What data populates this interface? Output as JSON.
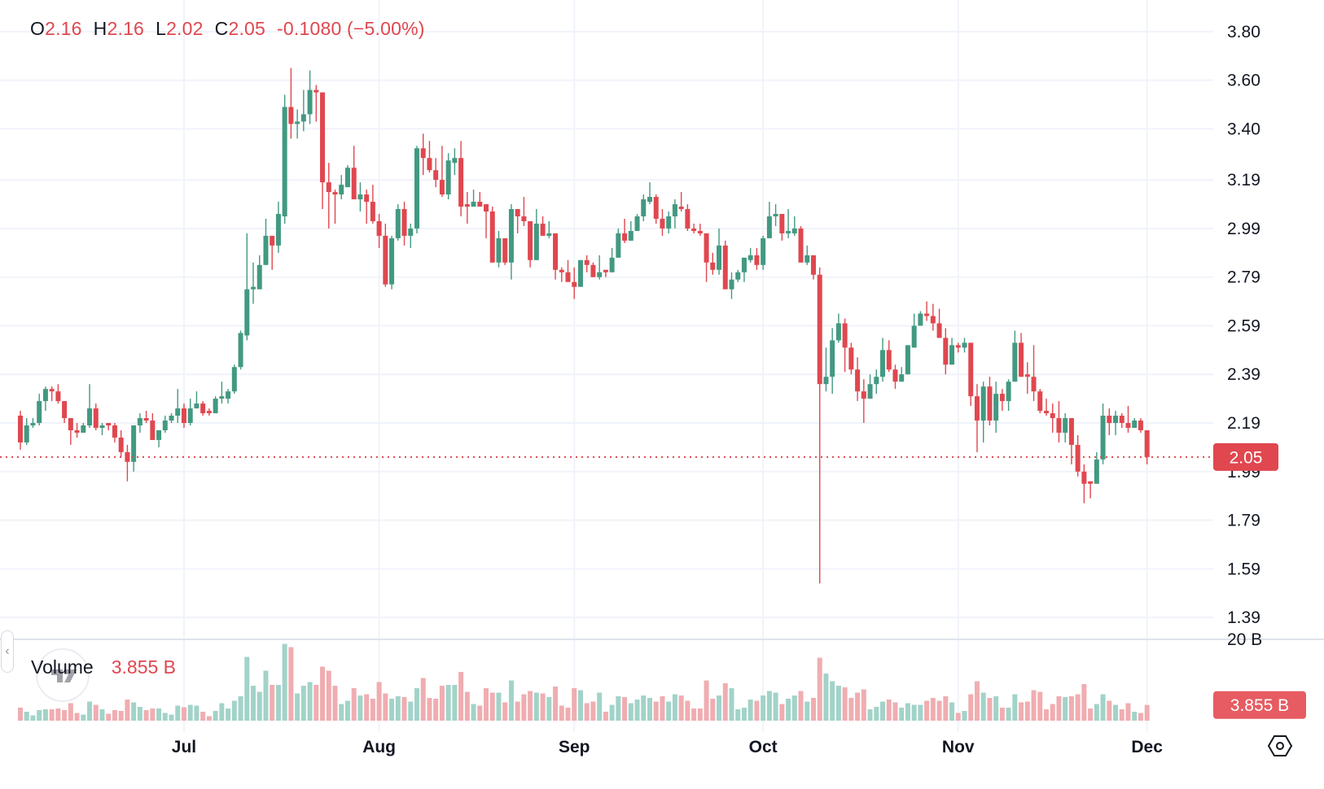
{
  "legend": {
    "o_label": "O",
    "o": "2.16",
    "h_label": "H",
    "h": "2.16",
    "l_label": "L",
    "l": "2.02",
    "c_label": "C",
    "c": "2.05",
    "change": "-0.1080 (−5.00%)"
  },
  "volume_legend": {
    "label": "Volume",
    "value": "3.855 B"
  },
  "price_axis": {
    "ticks": [
      "3.80",
      "3.60",
      "3.40",
      "3.19",
      "2.99",
      "2.79",
      "2.59",
      "2.39",
      "2.19",
      "1.99",
      "1.79",
      "1.59",
      "1.39"
    ],
    "last_price_label": "2.05"
  },
  "volume_axis": {
    "ticks": [
      "20 B"
    ],
    "last_volume_label": "3.855 B"
  },
  "time_axis": {
    "labels": [
      "Jul",
      "Aug",
      "Sep",
      "Oct",
      "Nov",
      "Dec"
    ]
  },
  "colors": {
    "up": "#429981",
    "down": "#e0474f",
    "volume_up": "#a2d3c8",
    "volume_down": "#f0adb1",
    "grid": "#f0f3fa",
    "text": "#131722"
  },
  "icons": {
    "collapse": "chevron-left-icon",
    "logo": "tradingview-logo",
    "settings": "settings-hexagon-icon"
  },
  "chart_data": {
    "type": "candlestick",
    "price_scale": "linear",
    "ylim": [
      1.3,
      3.93
    ],
    "volume_ylim": [
      0,
      21.5
    ],
    "volume_unit": "B",
    "grid": true,
    "last_close": 2.05,
    "columns": [
      "date",
      "open",
      "high",
      "low",
      "close",
      "volume"
    ],
    "candles": [
      [
        "Jun 5",
        2.22,
        2.24,
        2.08,
        2.11,
        3.2
      ],
      [
        "Jun 6",
        2.11,
        2.21,
        2.1,
        2.18,
        2.2
      ],
      [
        "Jun 7",
        2.18,
        2.21,
        2.17,
        2.19,
        1.3
      ],
      [
        "Jun 8",
        2.19,
        2.31,
        2.18,
        2.28,
        2.6
      ],
      [
        "Jun 9",
        2.28,
        2.34,
        2.24,
        2.33,
        2.8
      ],
      [
        "Jun 10",
        2.33,
        2.34,
        2.28,
        2.32,
        2.8
      ],
      [
        "Jun 11",
        2.32,
        2.35,
        2.27,
        2.28,
        3.0
      ],
      [
        "Jun 12",
        2.28,
        2.28,
        2.19,
        2.21,
        2.6
      ],
      [
        "Jun 13",
        2.21,
        2.21,
        2.1,
        2.16,
        4.3
      ],
      [
        "Jun 14",
        2.16,
        2.19,
        2.13,
        2.15,
        1.9
      ],
      [
        "Jun 15",
        2.15,
        2.19,
        2.15,
        2.18,
        1.5
      ],
      [
        "Jun 16",
        2.18,
        2.35,
        2.17,
        2.25,
        4.7
      ],
      [
        "Jun 17",
        2.25,
        2.27,
        2.16,
        2.17,
        3.9
      ],
      [
        "Jun 18",
        2.17,
        2.19,
        2.14,
        2.18,
        2.8
      ],
      [
        "Jun 19",
        2.19,
        2.19,
        2.16,
        2.18,
        1.7
      ],
      [
        "Jun 20",
        2.18,
        2.19,
        2.11,
        2.13,
        2.6
      ],
      [
        "Jun 21",
        2.13,
        2.16,
        2.05,
        2.07,
        2.4
      ],
      [
        "Jun 22",
        2.07,
        2.1,
        1.95,
        2.03,
        5.2
      ],
      [
        "Jun 23",
        2.03,
        2.18,
        1.99,
        2.18,
        4.5
      ],
      [
        "Jun 24",
        2.18,
        2.23,
        2.15,
        2.21,
        3.4
      ],
      [
        "Jun 25",
        2.21,
        2.24,
        2.19,
        2.2,
        2.6
      ],
      [
        "Jun 26",
        2.2,
        2.23,
        2.12,
        2.12,
        3.0
      ],
      [
        "Jun 27",
        2.12,
        2.16,
        2.09,
        2.16,
        3.0
      ],
      [
        "Jun 28",
        2.16,
        2.22,
        2.15,
        2.2,
        1.9
      ],
      [
        "Jun 29",
        2.2,
        2.23,
        2.19,
        2.22,
        1.5
      ],
      [
        "Jun 30",
        2.22,
        2.33,
        2.19,
        2.25,
        3.7
      ],
      [
        "Jul 1",
        2.25,
        2.27,
        2.17,
        2.19,
        3.3
      ],
      [
        "Jul 2",
        2.19,
        2.29,
        2.18,
        2.25,
        3.9
      ],
      [
        "Jul 3",
        2.25,
        2.32,
        2.25,
        2.27,
        3.7
      ],
      [
        "Jul 4",
        2.27,
        2.28,
        2.22,
        2.23,
        2.2
      ],
      [
        "Jul 5",
        2.24,
        2.25,
        2.22,
        2.23,
        1.1
      ],
      [
        "Jul 6",
        2.23,
        2.3,
        2.23,
        2.29,
        2.4
      ],
      [
        "Jul 7",
        2.29,
        2.36,
        2.27,
        2.3,
        4.3
      ],
      [
        "Jul 8",
        2.29,
        2.33,
        2.27,
        2.32,
        3.0
      ],
      [
        "Jul 9",
        2.32,
        2.43,
        2.31,
        2.42,
        4.9
      ],
      [
        "Jul 10",
        2.42,
        2.57,
        2.41,
        2.56,
        6.0
      ],
      [
        "Jul 11",
        2.55,
        2.97,
        2.53,
        2.74,
        15.7
      ],
      [
        "Jul 12",
        2.74,
        2.85,
        2.68,
        2.75,
        8.6
      ],
      [
        "Jul 13",
        2.74,
        2.88,
        2.74,
        2.84,
        7.1
      ],
      [
        "Jul 14",
        2.84,
        3.03,
        2.84,
        2.96,
        12.3
      ],
      [
        "Jul 15",
        2.96,
        2.96,
        2.82,
        2.92,
        8.8
      ],
      [
        "Jul 16",
        2.92,
        3.1,
        2.89,
        3.05,
        8.8
      ],
      [
        "Jul 17",
        3.04,
        3.54,
        3.01,
        3.49,
        18.9
      ],
      [
        "Jul 18",
        3.49,
        3.65,
        3.36,
        3.42,
        18.1
      ],
      [
        "Jul 19",
        3.42,
        3.48,
        3.36,
        3.43,
        6.7
      ],
      [
        "Jul 20",
        3.43,
        3.56,
        3.39,
        3.46,
        8.6
      ],
      [
        "Jul 21",
        3.46,
        3.64,
        3.42,
        3.56,
        9.5
      ],
      [
        "Jul 22",
        3.56,
        3.58,
        3.43,
        3.55,
        8.8
      ],
      [
        "Jul 23",
        3.55,
        3.55,
        3.07,
        3.18,
        13.3
      ],
      [
        "Jul 24",
        3.18,
        3.26,
        2.99,
        3.14,
        12.3
      ],
      [
        "Jul 25",
        3.14,
        3.15,
        3.01,
        3.13,
        8.6
      ],
      [
        "Jul 26",
        3.13,
        3.21,
        3.11,
        3.17,
        4.1
      ],
      [
        "Jul 27",
        3.16,
        3.25,
        3.16,
        3.24,
        4.9
      ],
      [
        "Jul 28",
        3.24,
        3.33,
        3.11,
        3.11,
        8.0
      ],
      [
        "Jul 29",
        3.11,
        3.18,
        3.06,
        3.13,
        6.2
      ],
      [
        "Jul 30",
        3.13,
        3.15,
        3.01,
        3.1,
        6.5
      ],
      [
        "Jul 31",
        3.1,
        3.17,
        3.01,
        3.02,
        5.4
      ],
      [
        "Aug 1",
        3.02,
        3.05,
        2.91,
        2.96,
        9.5
      ],
      [
        "Aug 2",
        2.96,
        3.01,
        2.75,
        2.76,
        6.7
      ],
      [
        "Aug 3",
        2.76,
        2.96,
        2.74,
        2.95,
        5.4
      ],
      [
        "Aug 4",
        2.95,
        3.09,
        2.94,
        3.07,
        6.0
      ],
      [
        "Aug 5",
        3.07,
        3.1,
        2.92,
        2.96,
        5.8
      ],
      [
        "Aug 6",
        2.96,
        3.01,
        2.91,
        2.99,
        4.7
      ],
      [
        "Aug 7",
        2.99,
        3.33,
        2.97,
        3.32,
        8.0
      ],
      [
        "Aug 8",
        3.32,
        3.38,
        3.21,
        3.28,
        10.5
      ],
      [
        "Aug 9",
        3.28,
        3.35,
        3.22,
        3.23,
        5.6
      ],
      [
        "Aug 10",
        3.23,
        3.28,
        3.16,
        3.19,
        5.4
      ],
      [
        "Aug 11",
        3.19,
        3.33,
        3.12,
        3.13,
        8.6
      ],
      [
        "Aug 12",
        3.13,
        3.3,
        3.11,
        3.27,
        8.8
      ],
      [
        "Aug 13",
        3.26,
        3.32,
        3.21,
        3.28,
        8.8
      ],
      [
        "Aug 14",
        3.28,
        3.35,
        3.04,
        3.08,
        12.0
      ],
      [
        "Aug 15",
        3.09,
        3.14,
        3.01,
        3.08,
        7.1
      ],
      [
        "Aug 16",
        3.08,
        3.15,
        3.08,
        3.1,
        4.1
      ],
      [
        "Aug 17",
        3.1,
        3.14,
        3.08,
        3.08,
        3.7
      ],
      [
        "Aug 18",
        3.09,
        3.09,
        2.95,
        3.06,
        8.0
      ],
      [
        "Aug 19",
        3.06,
        3.08,
        2.85,
        2.85,
        6.9
      ],
      [
        "Aug 20",
        2.85,
        2.98,
        2.83,
        2.95,
        6.9
      ],
      [
        "Aug 21",
        2.95,
        2.95,
        2.84,
        2.85,
        4.5
      ],
      [
        "Aug 22",
        2.85,
        3.09,
        2.78,
        3.07,
        9.9
      ],
      [
        "Aug 23",
        3.07,
        3.07,
        2.97,
        3.04,
        4.7
      ],
      [
        "Aug 24",
        3.04,
        3.12,
        3.0,
        3.02,
        6.5
      ],
      [
        "Aug 25",
        3.02,
        3.02,
        2.83,
        2.86,
        7.3
      ],
      [
        "Aug 26",
        2.86,
        3.07,
        2.86,
        3.01,
        6.9
      ],
      [
        "Aug 27",
        3.01,
        3.04,
        2.96,
        2.96,
        6.7
      ],
      [
        "Aug 28",
        2.96,
        3.02,
        2.95,
        2.97,
        5.8
      ],
      [
        "Aug 29",
        2.97,
        2.97,
        2.78,
        2.82,
        8.4
      ],
      [
        "Aug 30",
        2.82,
        2.83,
        2.77,
        2.81,
        3.7
      ],
      [
        "Aug 31",
        2.81,
        2.86,
        2.77,
        2.77,
        3.2
      ],
      [
        "Sep 1",
        2.77,
        2.83,
        2.7,
        2.75,
        8.0
      ],
      [
        "Sep 2",
        2.75,
        2.86,
        2.75,
        2.86,
        7.5
      ],
      [
        "Sep 3",
        2.86,
        2.88,
        2.81,
        2.84,
        4.3
      ],
      [
        "Sep 4",
        2.84,
        2.85,
        2.79,
        2.79,
        4.7
      ],
      [
        "Sep 5",
        2.79,
        2.88,
        2.78,
        2.81,
        6.9
      ],
      [
        "Sep 6",
        2.82,
        2.82,
        2.79,
        2.81,
        2.2
      ],
      [
        "Sep 7",
        2.81,
        2.91,
        2.81,
        2.87,
        3.9
      ],
      [
        "Sep 8",
        2.87,
        2.99,
        2.87,
        2.97,
        6.0
      ],
      [
        "Sep 9",
        2.97,
        3.03,
        2.93,
        2.94,
        5.8
      ],
      [
        "Sep 10",
        2.94,
        3.02,
        2.94,
        2.98,
        4.3
      ],
      [
        "Sep 11",
        2.98,
        3.05,
        2.98,
        3.04,
        5.2
      ],
      [
        "Sep 12",
        3.04,
        3.13,
        3.02,
        3.11,
        6.2
      ],
      [
        "Sep 13",
        3.1,
        3.18,
        3.09,
        3.12,
        5.6
      ],
      [
        "Sep 14",
        3.12,
        3.13,
        3.01,
        3.03,
        4.7
      ],
      [
        "Sep 15",
        3.03,
        3.07,
        2.96,
        2.99,
        6.0
      ],
      [
        "Sep 16",
        2.99,
        3.06,
        2.97,
        3.04,
        4.7
      ],
      [
        "Sep 17",
        3.04,
        3.11,
        2.99,
        3.09,
        6.5
      ],
      [
        "Sep 18",
        3.08,
        3.14,
        3.06,
        3.07,
        6.2
      ],
      [
        "Sep 19",
        3.07,
        3.09,
        2.98,
        2.99,
        4.9
      ],
      [
        "Sep 20",
        2.99,
        3.01,
        2.97,
        2.98,
        3.0
      ],
      [
        "Sep 21",
        2.98,
        3.01,
        2.96,
        2.97,
        3.0
      ],
      [
        "Sep 22",
        2.97,
        2.97,
        2.77,
        2.85,
        9.9
      ],
      [
        "Sep 23",
        2.85,
        2.89,
        2.8,
        2.82,
        5.4
      ],
      [
        "Sep 24",
        2.82,
        2.99,
        2.8,
        2.92,
        6.2
      ],
      [
        "Sep 25",
        2.92,
        2.94,
        2.74,
        2.74,
        9.2
      ],
      [
        "Sep 26",
        2.74,
        2.81,
        2.7,
        2.78,
        8.0
      ],
      [
        "Sep 27",
        2.78,
        2.82,
        2.77,
        2.81,
        2.8
      ],
      [
        "Sep 28",
        2.81,
        2.87,
        2.77,
        2.87,
        3.2
      ],
      [
        "Sep 29",
        2.86,
        2.91,
        2.85,
        2.88,
        5.2
      ],
      [
        "Sep 30",
        2.88,
        2.91,
        2.82,
        2.84,
        4.9
      ],
      [
        "Oct 1",
        2.84,
        2.96,
        2.82,
        2.95,
        6.2
      ],
      [
        "Oct 2",
        2.95,
        3.1,
        2.95,
        3.04,
        7.3
      ],
      [
        "Oct 3",
        3.04,
        3.09,
        3.0,
        3.05,
        6.9
      ],
      [
        "Oct 4",
        3.05,
        3.05,
        2.94,
        2.97,
        4.1
      ],
      [
        "Oct 5",
        2.97,
        3.07,
        2.95,
        2.98,
        5.4
      ],
      [
        "Oct 6",
        2.97,
        3.04,
        2.96,
        2.99,
        6.2
      ],
      [
        "Oct 7",
        2.99,
        3.0,
        2.85,
        2.85,
        7.3
      ],
      [
        "Oct 8",
        2.85,
        2.92,
        2.84,
        2.88,
        4.7
      ],
      [
        "Oct 9",
        2.88,
        2.88,
        2.78,
        2.8,
        5.6
      ],
      [
        "Oct 10",
        2.8,
        2.83,
        1.53,
        2.35,
        15.5
      ],
      [
        "Oct 11",
        2.35,
        2.5,
        2.32,
        2.38,
        11.6
      ],
      [
        "Oct 12",
        2.38,
        2.58,
        2.31,
        2.53,
        9.7
      ],
      [
        "Oct 13",
        2.53,
        2.64,
        2.52,
        2.6,
        8.6
      ],
      [
        "Oct 14",
        2.6,
        2.62,
        2.4,
        2.5,
        8.2
      ],
      [
        "Oct 15",
        2.5,
        2.52,
        2.39,
        2.41,
        5.6
      ],
      [
        "Oct 16",
        2.41,
        2.46,
        2.28,
        2.32,
        6.9
      ],
      [
        "Oct 17",
        2.32,
        2.37,
        2.19,
        2.29,
        7.7
      ],
      [
        "Oct 18",
        2.29,
        2.39,
        2.29,
        2.35,
        2.8
      ],
      [
        "Oct 19",
        2.35,
        2.41,
        2.31,
        2.38,
        3.4
      ],
      [
        "Oct 20",
        2.38,
        2.54,
        2.36,
        2.49,
        4.7
      ],
      [
        "Oct 21",
        2.49,
        2.53,
        2.4,
        2.41,
        5.2
      ],
      [
        "Oct 22",
        2.41,
        2.43,
        2.33,
        2.36,
        4.5
      ],
      [
        "Oct 23",
        2.36,
        2.42,
        2.36,
        2.39,
        3.2
      ],
      [
        "Oct 24",
        2.39,
        2.51,
        2.39,
        2.51,
        4.3
      ],
      [
        "Oct 25",
        2.5,
        2.64,
        2.5,
        2.59,
        3.9
      ],
      [
        "Oct 26",
        2.59,
        2.65,
        2.59,
        2.64,
        3.9
      ],
      [
        "Oct 27",
        2.64,
        2.69,
        2.61,
        2.63,
        4.9
      ],
      [
        "Oct 28",
        2.63,
        2.68,
        2.57,
        2.6,
        5.6
      ],
      [
        "Oct 29",
        2.6,
        2.66,
        2.54,
        2.54,
        4.9
      ],
      [
        "Oct 30",
        2.54,
        2.58,
        2.39,
        2.43,
        6.0
      ],
      [
        "Oct 31",
        2.43,
        2.54,
        2.43,
        2.51,
        4.5
      ],
      [
        "Nov 1",
        2.51,
        2.52,
        2.48,
        2.5,
        1.9
      ],
      [
        "Nov 2",
        2.5,
        2.54,
        2.48,
        2.52,
        2.4
      ],
      [
        "Nov 3",
        2.52,
        2.52,
        2.26,
        2.3,
        6.5
      ],
      [
        "Nov 4",
        2.3,
        2.35,
        2.07,
        2.2,
        9.7
      ],
      [
        "Nov 5",
        2.2,
        2.36,
        2.11,
        2.34,
        6.9
      ],
      [
        "Nov 6",
        2.34,
        2.38,
        2.18,
        2.2,
        5.6
      ],
      [
        "Nov 7",
        2.2,
        2.36,
        2.15,
        2.31,
        6.0
      ],
      [
        "Nov 8",
        2.31,
        2.33,
        2.24,
        2.28,
        3.2
      ],
      [
        "Nov 9",
        2.28,
        2.37,
        2.24,
        2.36,
        3.2
      ],
      [
        "Nov 10",
        2.36,
        2.57,
        2.36,
        2.52,
        6.5
      ],
      [
        "Nov 11",
        2.52,
        2.56,
        2.38,
        2.38,
        4.5
      ],
      [
        "Nov 12",
        2.39,
        2.44,
        2.31,
        2.38,
        4.7
      ],
      [
        "Nov 13",
        2.38,
        2.51,
        2.28,
        2.32,
        7.5
      ],
      [
        "Nov 14",
        2.32,
        2.33,
        2.23,
        2.24,
        7.1
      ],
      [
        "Nov 15",
        2.24,
        2.29,
        2.22,
        2.23,
        2.8
      ],
      [
        "Nov 16",
        2.23,
        2.27,
        2.15,
        2.21,
        4.1
      ],
      [
        "Nov 17",
        2.21,
        2.28,
        2.11,
        2.15,
        6.0
      ],
      [
        "Nov 18",
        2.15,
        2.23,
        2.11,
        2.21,
        5.8
      ],
      [
        "Nov 19",
        2.21,
        2.21,
        2.02,
        2.1,
        6.0
      ],
      [
        "Nov 20",
        2.1,
        2.14,
        1.97,
        1.99,
        6.5
      ],
      [
        "Nov 21",
        1.99,
        2.02,
        1.86,
        1.94,
        9.0
      ],
      [
        "Nov 22",
        1.95,
        1.95,
        1.88,
        1.94,
        3.0
      ],
      [
        "Nov 23",
        1.94,
        2.07,
        1.94,
        2.04,
        4.1
      ],
      [
        "Nov 24",
        2.04,
        2.27,
        2.02,
        2.22,
        6.5
      ],
      [
        "Nov 25",
        2.22,
        2.25,
        2.14,
        2.19,
        4.9
      ],
      [
        "Nov 26",
        2.19,
        2.24,
        2.14,
        2.22,
        3.9
      ],
      [
        "Nov 27",
        2.22,
        2.23,
        2.17,
        2.19,
        2.8
      ],
      [
        "Nov 28",
        2.19,
        2.26,
        2.15,
        2.17,
        4.3
      ],
      [
        "Nov 29",
        2.17,
        2.21,
        2.17,
        2.2,
        2.2
      ],
      [
        "Nov 30",
        2.2,
        2.21,
        2.15,
        2.16,
        1.9
      ],
      [
        "Dec 1",
        2.16,
        2.16,
        2.02,
        2.05,
        3.855
      ]
    ]
  }
}
